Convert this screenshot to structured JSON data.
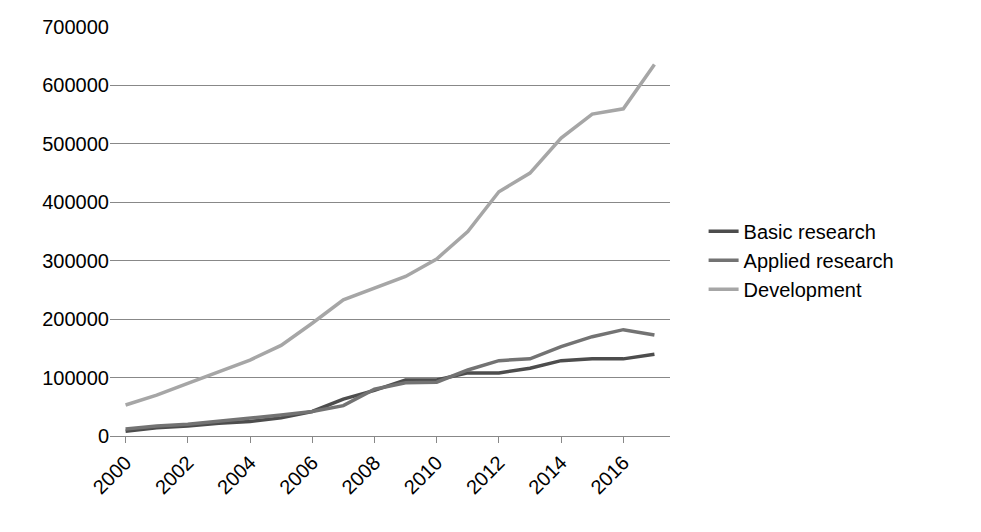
{
  "chart_data": {
    "type": "line",
    "x": [
      2000,
      2001,
      2002,
      2003,
      2004,
      2005,
      2006,
      2007,
      2008,
      2009,
      2010,
      2011,
      2012,
      2013,
      2014,
      2015,
      2016,
      2017
    ],
    "series": [
      {
        "name": "Basic research",
        "color": "#4d4d4d",
        "values": [
          8000,
          14000,
          17000,
          22000,
          25000,
          31000,
          42000,
          63000,
          78000,
          96000,
          96000,
          108000,
          108000,
          116000,
          129000,
          132000,
          132000,
          140000
        ]
      },
      {
        "name": "Applied research",
        "color": "#737373",
        "values": [
          12000,
          17000,
          20000,
          25000,
          31000,
          36000,
          42000,
          52000,
          80000,
          91000,
          92000,
          113000,
          129000,
          132000,
          153000,
          170000,
          182000,
          173000
        ]
      },
      {
        "name": "Development",
        "color": "#a6a6a6",
        "values": [
          53000,
          70000,
          90000,
          110000,
          130000,
          155000,
          193000,
          233000,
          253000,
          273000,
          303000,
          350000,
          418000,
          450000,
          510000,
          551000,
          560000,
          636000
        ]
      }
    ],
    "xlim": [
      1999.5,
      2017.5
    ],
    "xticks": [
      2000,
      2002,
      2004,
      2006,
      2008,
      2010,
      2012,
      2014,
      2016
    ],
    "ylim": [
      0,
      700000
    ],
    "yticks": [
      0,
      100000,
      200000,
      300000,
      400000,
      500000,
      600000,
      700000
    ],
    "grid": true,
    "legend": "right"
  }
}
